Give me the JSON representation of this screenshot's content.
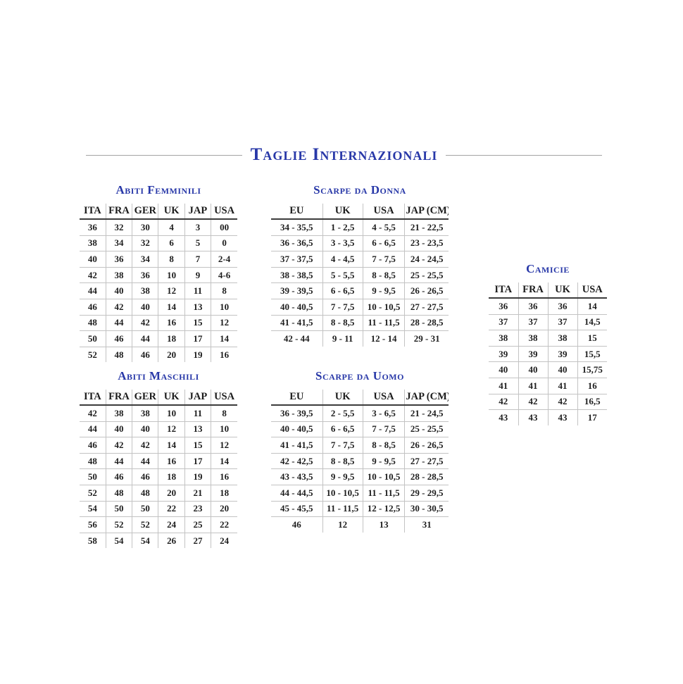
{
  "page": {
    "title": "Taglie Internazionali"
  },
  "colors": {
    "accent_blue": "#2838a8",
    "table_text": "#1e1e1e",
    "header_underline": "#3c3c3c",
    "grid_line": "#c3c3c3",
    "title_rule": "#a3a3a3",
    "background": "#ffffff"
  },
  "tables": {
    "abiti_femminili": {
      "title": "Abiti Femminili",
      "headers": [
        "ITA",
        "FRA",
        "GER",
        "UK",
        "JAP",
        "USA"
      ],
      "rows": [
        [
          "36",
          "32",
          "30",
          "4",
          "3",
          "00"
        ],
        [
          "38",
          "34",
          "32",
          "6",
          "5",
          "0"
        ],
        [
          "40",
          "36",
          "34",
          "8",
          "7",
          "2-4"
        ],
        [
          "42",
          "38",
          "36",
          "10",
          "9",
          "4-6"
        ],
        [
          "44",
          "40",
          "38",
          "12",
          "11",
          "8"
        ],
        [
          "46",
          "42",
          "40",
          "14",
          "13",
          "10"
        ],
        [
          "48",
          "44",
          "42",
          "16",
          "15",
          "12"
        ],
        [
          "50",
          "46",
          "44",
          "18",
          "17",
          "14"
        ],
        [
          "52",
          "48",
          "46",
          "20",
          "19",
          "16"
        ]
      ]
    },
    "scarpe_da_donna": {
      "title": "Scarpe da Donna",
      "headers": [
        "EU",
        "UK",
        "USA",
        "JAP (CM)"
      ],
      "rows": [
        [
          "34 - 35,5",
          "1 - 2,5",
          "4 - 5,5",
          "21 - 22,5"
        ],
        [
          "36 - 36,5",
          "3 - 3,5",
          "6 - 6,5",
          "23 - 23,5"
        ],
        [
          "37 - 37,5",
          "4 - 4,5",
          "7 - 7,5",
          "24 - 24,5"
        ],
        [
          "38 - 38,5",
          "5 - 5,5",
          "8 - 8,5",
          "25 - 25,5"
        ],
        [
          "39 - 39,5",
          "6 - 6,5",
          "9 - 9,5",
          "26 - 26,5"
        ],
        [
          "40 - 40,5",
          "7 - 7,5",
          "10 - 10,5",
          "27 - 27,5"
        ],
        [
          "41 - 41,5",
          "8 - 8,5",
          "11 - 11,5",
          "28 - 28,5"
        ],
        [
          "42 - 44",
          "9 - 11",
          "12 - 14",
          "29 - 31"
        ]
      ]
    },
    "camicie": {
      "title": "Camicie",
      "headers": [
        "ITA",
        "FRA",
        "UK",
        "USA"
      ],
      "rows": [
        [
          "36",
          "36",
          "36",
          "14"
        ],
        [
          "37",
          "37",
          "37",
          "14,5"
        ],
        [
          "38",
          "38",
          "38",
          "15"
        ],
        [
          "39",
          "39",
          "39",
          "15,5"
        ],
        [
          "40",
          "40",
          "40",
          "15,75"
        ],
        [
          "41",
          "41",
          "41",
          "16"
        ],
        [
          "42",
          "42",
          "42",
          "16,5"
        ],
        [
          "43",
          "43",
          "43",
          "17"
        ]
      ]
    },
    "abiti_maschili": {
      "title": "Abiti Maschili",
      "headers": [
        "ITA",
        "FRA",
        "GER",
        "UK",
        "JAP",
        "USA"
      ],
      "rows": [
        [
          "42",
          "38",
          "38",
          "10",
          "11",
          "8"
        ],
        [
          "44",
          "40",
          "40",
          "12",
          "13",
          "10"
        ],
        [
          "46",
          "42",
          "42",
          "14",
          "15",
          "12"
        ],
        [
          "48",
          "44",
          "44",
          "16",
          "17",
          "14"
        ],
        [
          "50",
          "46",
          "46",
          "18",
          "19",
          "16"
        ],
        [
          "52",
          "48",
          "48",
          "20",
          "21",
          "18"
        ],
        [
          "54",
          "50",
          "50",
          "22",
          "23",
          "20"
        ],
        [
          "56",
          "52",
          "52",
          "24",
          "25",
          "22"
        ],
        [
          "58",
          "54",
          "54",
          "26",
          "27",
          "24"
        ]
      ]
    },
    "scarpe_da_uomo": {
      "title": "Scarpe da Uomo",
      "headers": [
        "EU",
        "UK",
        "USA",
        "JAP (CM)"
      ],
      "rows": [
        [
          "36 - 39,5",
          "2 - 5,5",
          "3 - 6,5",
          "21 - 24,5"
        ],
        [
          "40 - 40,5",
          "6 - 6,5",
          "7 - 7,5",
          "25 - 25,5"
        ],
        [
          "41 - 41,5",
          "7 - 7,5",
          "8 - 8,5",
          "26 - 26,5"
        ],
        [
          "42 - 42,5",
          "8 - 8,5",
          "9 - 9,5",
          "27 - 27,5"
        ],
        [
          "43 - 43,5",
          "9 - 9,5",
          "10 - 10,5",
          "28 - 28,5"
        ],
        [
          "44 - 44,5",
          "10 - 10,5",
          "11 - 11,5",
          "29 - 29,5"
        ],
        [
          "45 - 45,5",
          "11 - 11,5",
          "12 - 12,5",
          "30 - 30,5"
        ],
        [
          "46",
          "12",
          "13",
          "31"
        ]
      ]
    }
  }
}
